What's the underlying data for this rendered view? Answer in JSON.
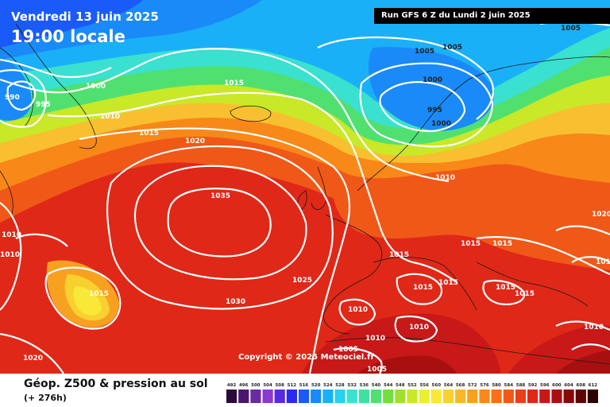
{
  "header": {
    "date": "Vendredi 13 juin 2025",
    "local_time": "19:00 locale",
    "run": "Run GFS 6 Z du Lundi 2 juin 2025"
  },
  "copyright": "Copyright © 2025 Meteociel.fr",
  "footer": {
    "title": "Géop. Z500 & pression au sol",
    "lead_time": "(+ 276h)"
  },
  "scale": {
    "labels": [
      "492",
      "496",
      "500",
      "504",
      "508",
      "512",
      "516",
      "520",
      "524",
      "528",
      "532",
      "536",
      "540",
      "544",
      "548",
      "552",
      "556",
      "560",
      "564",
      "568",
      "572",
      "576",
      "580",
      "584",
      "588",
      "592",
      "596",
      "600",
      "604",
      "608",
      "612"
    ],
    "colors": [
      "#2a0a3a",
      "#4a1670",
      "#6a2aa0",
      "#8a3ad0",
      "#5a2ae0",
      "#2a2af0",
      "#1a5af8",
      "#1a8af8",
      "#1ab0f8",
      "#2ad0f0",
      "#3ae0d0",
      "#40e0a0",
      "#50e070",
      "#70e040",
      "#a0e030",
      "#c8e828",
      "#e8f030",
      "#f8e838",
      "#f8d030",
      "#f8b828",
      "#f8a020",
      "#f88818",
      "#f87018",
      "#f05818",
      "#e84018",
      "#e02818",
      "#c81818",
      "#a81010",
      "#880808",
      "#600404",
      "#300000"
    ]
  },
  "isobars": {
    "labels": [
      "1005",
      "1005",
      "1005",
      "1000",
      "995",
      "1000",
      "990",
      "995",
      "1000",
      "1010",
      "1015",
      "1015",
      "1020",
      "1035",
      "1010",
      "1010",
      "1015",
      "1015",
      "1015",
      "1025",
      "1010",
      "1030",
      "1015",
      "1015",
      "1015",
      "1015",
      "1015",
      "1010",
      "1020",
      "1010",
      "1010",
      "1010",
      "1005",
      "1005",
      "1020",
      "1010"
    ]
  }
}
